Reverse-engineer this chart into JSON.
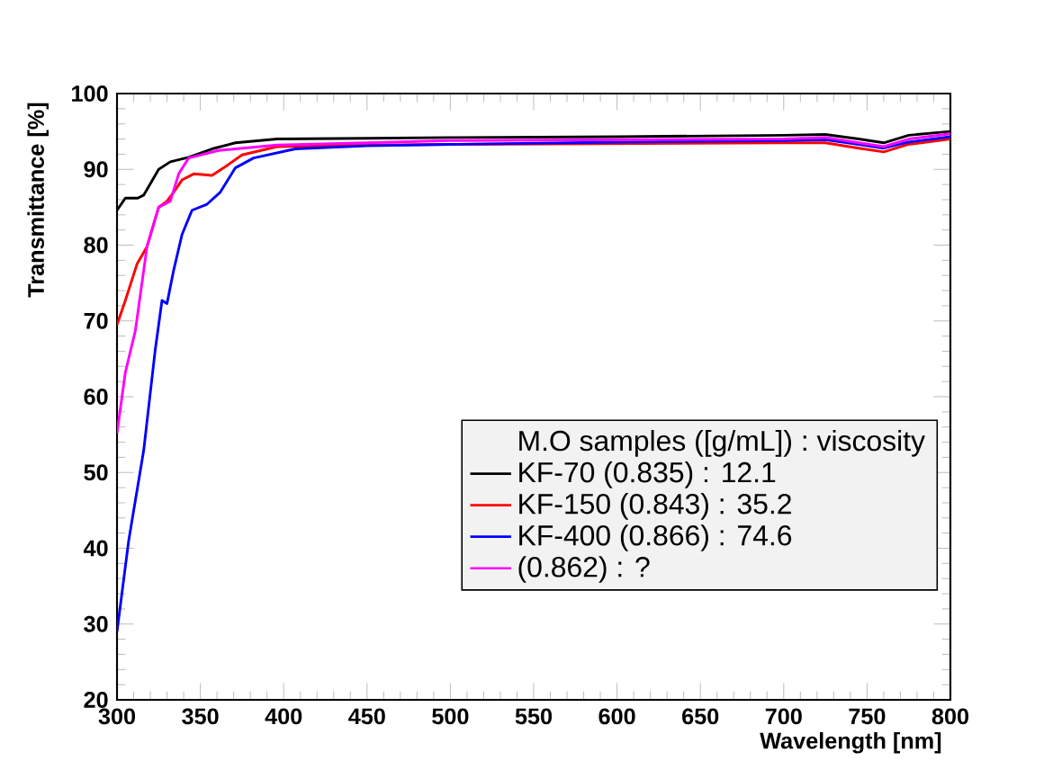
{
  "chart_data": {
    "type": "line",
    "xlabel": "Wavelength [nm]",
    "ylabel": "Transmittance [%]",
    "legend_title": "M.O samples    ([g/mL]) : viscosity",
    "legend": "right",
    "xlim": [
      300,
      800
    ],
    "ylim": [
      20,
      100
    ],
    "xticks": [
      300,
      350,
      400,
      450,
      500,
      550,
      600,
      650,
      700,
      750,
      800
    ],
    "yticks": [
      20,
      30,
      40,
      50,
      60,
      70,
      80,
      90,
      100
    ],
    "series": [
      {
        "name": "KF-70   (0.835)  :   12.1",
        "color": "#000000",
        "x": [
          300,
          305,
          312.5,
          316,
          325,
          332,
          343,
          357,
          371,
          396,
          450,
          500,
          600,
          700,
          725,
          745,
          760,
          775,
          800
        ],
        "values": [
          84.6,
          86.2,
          86.2,
          86.6,
          90,
          91,
          91.6,
          92.7,
          93.5,
          94,
          94.1,
          94.2,
          94.3,
          94.5,
          94.6,
          94.0,
          93.5,
          94.5,
          95
        ]
      },
      {
        "name": "KF-150  (0.843)  :   35.2",
        "color": "#ff0000",
        "x": [
          300,
          305,
          312,
          318,
          325,
          330,
          334,
          339,
          346,
          357,
          364,
          375,
          396,
          450,
          500,
          600,
          700,
          725,
          745,
          760,
          775,
          800
        ],
        "values": [
          69.5,
          72.7,
          77.5,
          79.8,
          85,
          85.8,
          87,
          88.6,
          89.4,
          89.2,
          90.2,
          91.9,
          93,
          93.2,
          93.3,
          93.4,
          93.5,
          93.5,
          92.8,
          92.3,
          93.3,
          94
        ]
      },
      {
        "name": "KF-400  (0.866)  :   74.6",
        "color": "#0000ff",
        "x": [
          300,
          307,
          316,
          323,
          327,
          330,
          334,
          339,
          345,
          354,
          362,
          371,
          382,
          407,
          450,
          500,
          600,
          700,
          725,
          745,
          760,
          775,
          800
        ],
        "values": [
          29,
          41,
          52.9,
          66.3,
          72.7,
          72.3,
          76.7,
          81.4,
          84.6,
          85.4,
          87,
          90.2,
          91.5,
          92.7,
          93.1,
          93.3,
          93.6,
          93.8,
          93.9,
          93.3,
          92.8,
          93.6,
          94.3
        ]
      },
      {
        "name": "(0.862)  :   ?",
        "color": "#ff00ff",
        "x": [
          300,
          305,
          311,
          318,
          325,
          332,
          337,
          343,
          361,
          396,
          450,
          500,
          600,
          700,
          725,
          745,
          760,
          775,
          800
        ],
        "values": [
          55.2,
          63.2,
          68.7,
          79.8,
          85,
          85.8,
          89.4,
          91.5,
          92.5,
          93.2,
          93.5,
          93.8,
          93.9,
          94,
          94.2,
          93.5,
          93,
          94,
          94.7
        ]
      }
    ]
  }
}
